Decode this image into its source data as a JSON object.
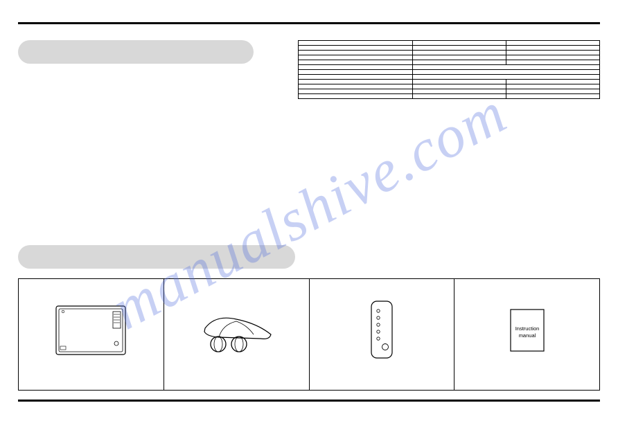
{
  "sections": {
    "spec_pill_label": "",
    "box_pill_label": ""
  },
  "spec_table": {
    "col_widths_pct": [
      38,
      31,
      31
    ],
    "rows": [
      {
        "type": "header",
        "cells": [
          "",
          "",
          ""
        ]
      },
      {
        "type": "data",
        "cells": [
          "",
          "",
          ""
        ]
      },
      {
        "type": "data",
        "cells": [
          "",
          "",
          ""
        ]
      },
      {
        "type": "data",
        "cells": [
          "",
          "",
          ""
        ]
      },
      {
        "type": "data",
        "cells": [
          "",
          "",
          ""
        ]
      },
      {
        "type": "merged",
        "cells": [
          "",
          ""
        ]
      },
      {
        "type": "merged",
        "cells": [
          "",
          ""
        ]
      },
      {
        "type": "merged",
        "cells": [
          "",
          ""
        ]
      },
      {
        "type": "data",
        "cells": [
          "",
          "",
          ""
        ]
      },
      {
        "type": "data",
        "cells": [
          "",
          "",
          ""
        ]
      },
      {
        "type": "data",
        "cells": [
          "",
          "",
          ""
        ]
      },
      {
        "type": "data",
        "cells": [
          "",
          "",
          ""
        ]
      }
    ]
  },
  "box_contents": {
    "items": [
      {
        "name": "heater-unit",
        "caption": ""
      },
      {
        "name": "castor-feet",
        "caption": ""
      },
      {
        "name": "remote-control",
        "caption": ""
      },
      {
        "name": "instruction-manual",
        "caption": "",
        "booklet_text_line1": "Instruction",
        "booklet_text_line2": "manual"
      }
    ]
  },
  "watermark_text": "manualshive.com",
  "colors": {
    "rule": "#000000",
    "pill_bg": "#d8d8d8",
    "watermark": "rgba(80,110,220,0.32)",
    "stroke": "#000000",
    "paper": "#ffffff"
  }
}
